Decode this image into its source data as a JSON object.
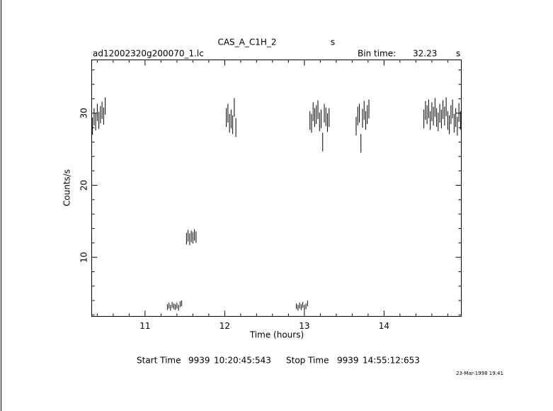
{
  "chart_data": {
    "type": "errorbar",
    "title": "CAS_A_C1H_2",
    "title_unit": "s",
    "file_name": "ad12002320g200070_1.lc",
    "bin_time_label": "Bin time:",
    "bin_time": "32.23",
    "bin_time_unit": "s",
    "x_label": "Time (hours)",
    "y_label": "Counts/s",
    "start_label": "Start Time",
    "start_day": "9939",
    "start_time": "10:20:45:543",
    "stop_label": "Stop Time",
    "stop_day": "9939",
    "stop_time": "14:55:12:653",
    "date": "23-Mar-1998 19:41",
    "color": "#000000",
    "bin_width": 0.00895,
    "xlim": [
      10.33,
      14.97
    ],
    "ylim": [
      1.8,
      37.4
    ],
    "xticks": [
      11,
      12,
      13,
      14
    ],
    "yticks": [
      10,
      20,
      30
    ],
    "xminorticks": [
      10.4,
      10.6,
      10.8,
      11.2,
      11.4,
      11.6,
      11.8,
      12.2,
      12.4,
      12.6,
      12.8,
      13.2,
      13.4,
      13.6,
      13.8,
      14.2,
      14.4,
      14.6,
      14.8
    ],
    "yminorticks": [
      2,
      4,
      6,
      8,
      12,
      14,
      16,
      18,
      22,
      24,
      26,
      28,
      32,
      34,
      36
    ],
    "x": [
      10.34,
      10.36,
      10.38,
      10.4,
      10.42,
      10.44,
      10.46,
      10.48,
      10.5,
      11.28,
      11.3,
      11.32,
      11.34,
      11.36,
      11.38,
      11.4,
      11.42,
      11.44,
      11.46,
      11.52,
      11.54,
      11.56,
      11.58,
      11.6,
      11.62,
      11.64,
      12.02,
      12.04,
      12.06,
      12.08,
      12.1,
      12.12,
      12.14,
      12.9,
      12.92,
      12.94,
      12.96,
      12.98,
      13.0,
      13.02,
      13.04,
      13.07,
      13.09,
      13.11,
      13.13,
      13.15,
      13.17,
      13.19,
      13.21,
      13.23,
      13.25,
      13.27,
      13.29,
      13.31,
      13.65,
      13.67,
      13.69,
      13.71,
      13.73,
      13.75,
      13.77,
      13.79,
      13.81,
      14.5,
      14.52,
      14.54,
      14.56,
      14.58,
      14.6,
      14.62,
      14.64,
      14.66,
      14.68,
      14.7,
      14.72,
      14.74,
      14.76,
      14.78,
      14.8,
      14.82,
      14.84,
      14.86,
      14.88,
      14.9,
      14.92,
      14.94,
      14.96
    ],
    "values": [
      28.2,
      29.5,
      28.8,
      30.1,
      29.0,
      29.8,
      30.4,
      29.6,
      31.0,
      3.1,
      3.3,
      3.0,
      3.4,
      3.2,
      3.1,
      3.3,
      3.0,
      3.5,
      3.6,
      12.6,
      13.0,
      12.5,
      12.9,
      12.7,
      13.1,
      12.8,
      29.4,
      30.0,
      28.6,
      29.2,
      28.4,
      30.8,
      28.0,
      3.2,
      3.0,
      3.3,
      3.1,
      3.4,
      3.0,
      3.2,
      3.6,
      29.0,
      28.6,
      30.2,
      29.4,
      29.8,
      30.5,
      28.8,
      29.2,
      26.0,
      30.0,
      29.5,
      28.7,
      29.4,
      28.2,
      29.6,
      30.0,
      25.8,
      29.3,
      30.4,
      29.0,
      29.8,
      30.6,
      29.2,
      30.4,
      29.8,
      30.6,
      29.0,
      30.2,
      29.6,
      30.8,
      29.4,
      28.8,
      30.0,
      29.2,
      30.5,
      29.6,
      30.9,
      29.0,
      28.4,
      29.8,
      30.6,
      28.6,
      29.4,
      28.2,
      30.1,
      29.0
    ],
    "errors": [
      1.2,
      1.2,
      1.2,
      1.2,
      1.2,
      1.2,
      1.2,
      1.2,
      1.2,
      0.4,
      0.4,
      0.4,
      0.4,
      0.4,
      0.4,
      0.4,
      0.4,
      0.4,
      0.4,
      0.8,
      0.8,
      0.8,
      0.8,
      0.8,
      0.8,
      0.8,
      1.3,
      1.3,
      1.3,
      1.3,
      1.3,
      1.3,
      1.3,
      0.4,
      0.4,
      0.4,
      0.4,
      0.4,
      0.4,
      0.4,
      0.4,
      1.3,
      1.3,
      1.3,
      1.3,
      1.3,
      1.3,
      1.3,
      1.3,
      1.3,
      1.3,
      1.3,
      1.3,
      1.3,
      1.3,
      1.3,
      1.3,
      1.3,
      1.3,
      1.3,
      1.3,
      1.3,
      1.3,
      1.3,
      1.3,
      1.3,
      1.3,
      1.3,
      1.3,
      1.3,
      1.3,
      1.3,
      1.3,
      1.3,
      1.3,
      1.3,
      1.3,
      1.3,
      1.3,
      1.3,
      1.3,
      1.3,
      1.3,
      1.3,
      1.3,
      1.3,
      1.3
    ]
  }
}
